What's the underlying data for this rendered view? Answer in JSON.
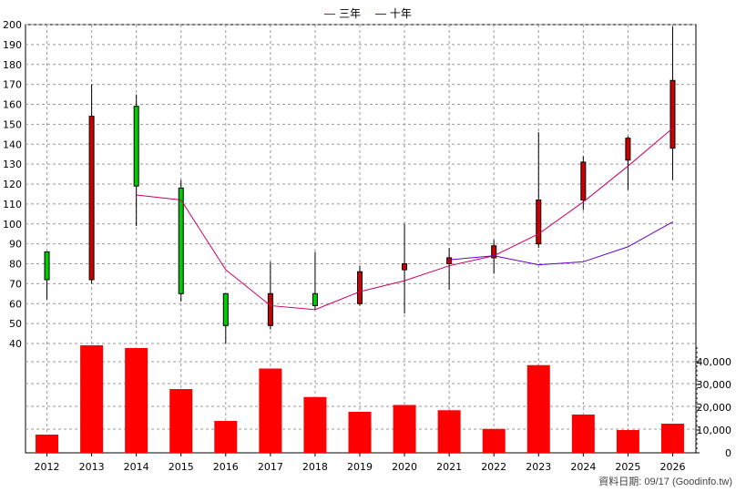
{
  "legend": {
    "items": [
      {
        "label": "三年",
        "color": "#cc0066"
      },
      {
        "label": "十年",
        "color": "#6600cc"
      }
    ]
  },
  "footer": "資料日期: 09/17  (Goodinfo.tw)",
  "colors": {
    "up": "#cc0000",
    "down": "#00cc00",
    "volume": "#ff0000",
    "ma3": "#cc0066",
    "ma10": "#6600cc",
    "grid": "#999999"
  },
  "chart_data": {
    "type": "candlestick",
    "categories": [
      "2012",
      "2013",
      "2014",
      "2015",
      "2016",
      "2017",
      "2018",
      "2019",
      "2020",
      "2021",
      "2022",
      "2023",
      "2024",
      "2025",
      "2026"
    ],
    "price_axis": {
      "min": 40,
      "max": 200,
      "ticks": [
        40,
        50,
        60,
        70,
        80,
        90,
        100,
        110,
        120,
        130,
        140,
        150,
        160,
        170,
        180,
        190,
        200
      ]
    },
    "volume_axis": {
      "min": 0,
      "max": 40000,
      "ticks": [
        0,
        10000,
        20000,
        30000,
        40000
      ],
      "tick_labels": [
        "0",
        "10,000",
        "20,000",
        "30,000",
        "40,000"
      ]
    },
    "candles": [
      {
        "year": "2012",
        "open": 86,
        "close": 72,
        "high": 86,
        "low": 62
      },
      {
        "year": "2013",
        "open": 72,
        "close": 154,
        "high": 170,
        "low": 70
      },
      {
        "year": "2014",
        "open": 159,
        "close": 119,
        "high": 165,
        "low": 99
      },
      {
        "year": "2015",
        "open": 118,
        "close": 65,
        "high": 122,
        "low": 61
      },
      {
        "year": "2016",
        "open": 65,
        "close": 49,
        "high": 65,
        "low": 40
      },
      {
        "year": "2017",
        "open": 49,
        "close": 65,
        "high": 81,
        "low": 47
      },
      {
        "year": "2018",
        "open": 65,
        "close": 59,
        "high": 86,
        "low": 57
      },
      {
        "year": "2019",
        "open": 60,
        "close": 76,
        "high": 79,
        "low": 59
      },
      {
        "year": "2020",
        "open": 77,
        "close": 80,
        "high": 100,
        "low": 55
      },
      {
        "year": "2021",
        "open": 80,
        "close": 83,
        "high": 88,
        "low": 67
      },
      {
        "year": "2022",
        "open": 83,
        "close": 89,
        "high": 92,
        "low": 75
      },
      {
        "year": "2023",
        "open": 90,
        "close": 112,
        "high": 146,
        "low": 88
      },
      {
        "year": "2024",
        "open": 112,
        "close": 131,
        "high": 134,
        "low": 107
      },
      {
        "year": "2025",
        "open": 132,
        "close": 143,
        "high": 144,
        "low": 117
      },
      {
        "year": "2026",
        "open": 138,
        "close": 172,
        "high": 199,
        "low": 122
      }
    ],
    "series": [
      {
        "name": "三年",
        "x": [
          "2014",
          "2015",
          "2016",
          "2017",
          "2018",
          "2019",
          "2020",
          "2021",
          "2022",
          "2023",
          "2024",
          "2025",
          "2026"
        ],
        "values": [
          114.5,
          112,
          77,
          59,
          57,
          66,
          71.5,
          79,
          84,
          95,
          111,
          129,
          148
        ]
      },
      {
        "name": "十年",
        "x": [
          "2021",
          "2022",
          "2023",
          "2024",
          "2025",
          "2026"
        ],
        "values": [
          82,
          84,
          79.5,
          81,
          88.5,
          101
        ]
      }
    ],
    "volume": [
      8000,
      47000,
      46000,
      28000,
      14000,
      37000,
      24500,
      18000,
      21000,
      18700,
      10500,
      38500,
      16800,
      10000,
      12800
    ]
  }
}
